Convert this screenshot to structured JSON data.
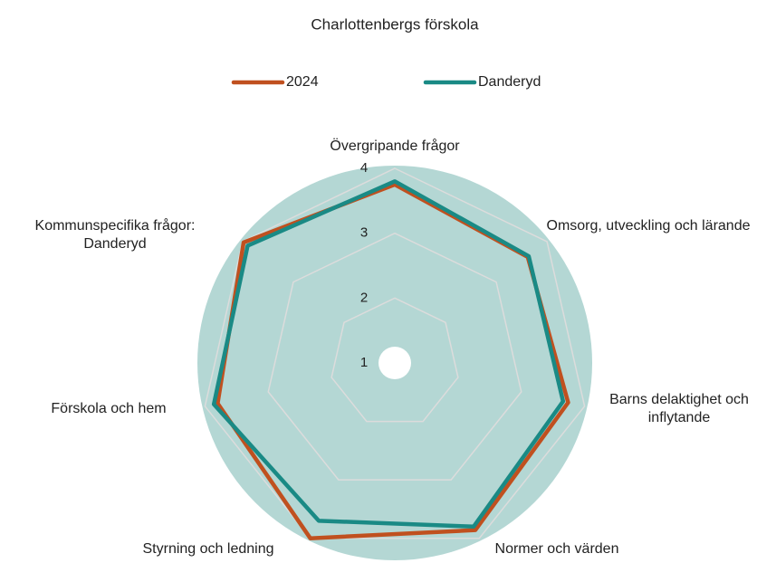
{
  "chart_data": {
    "type": "radar",
    "title": "Charlottenbergs förskola",
    "categories": [
      "Övergripande frågor",
      "Omsorg, utveckling och lärande",
      "Barns delaktighet och inflytande",
      "Normer och värden",
      "Styrning och ledning",
      "Förskola och hem",
      "Kommunspecifika frågor: Danderyd"
    ],
    "series": [
      {
        "name": "2024",
        "color": "#c0501f",
        "values": [
          3.75,
          3.62,
          3.74,
          3.86,
          4.0,
          3.8,
          3.98
        ]
      },
      {
        "name": "Danderyd",
        "color": "#1a8a85",
        "values": [
          3.8,
          3.64,
          3.66,
          3.8,
          3.7,
          3.86,
          3.9
        ]
      }
    ],
    "rlim": [
      1,
      4
    ],
    "rticks": [
      1,
      2,
      3,
      4
    ],
    "grid": true
  }
}
